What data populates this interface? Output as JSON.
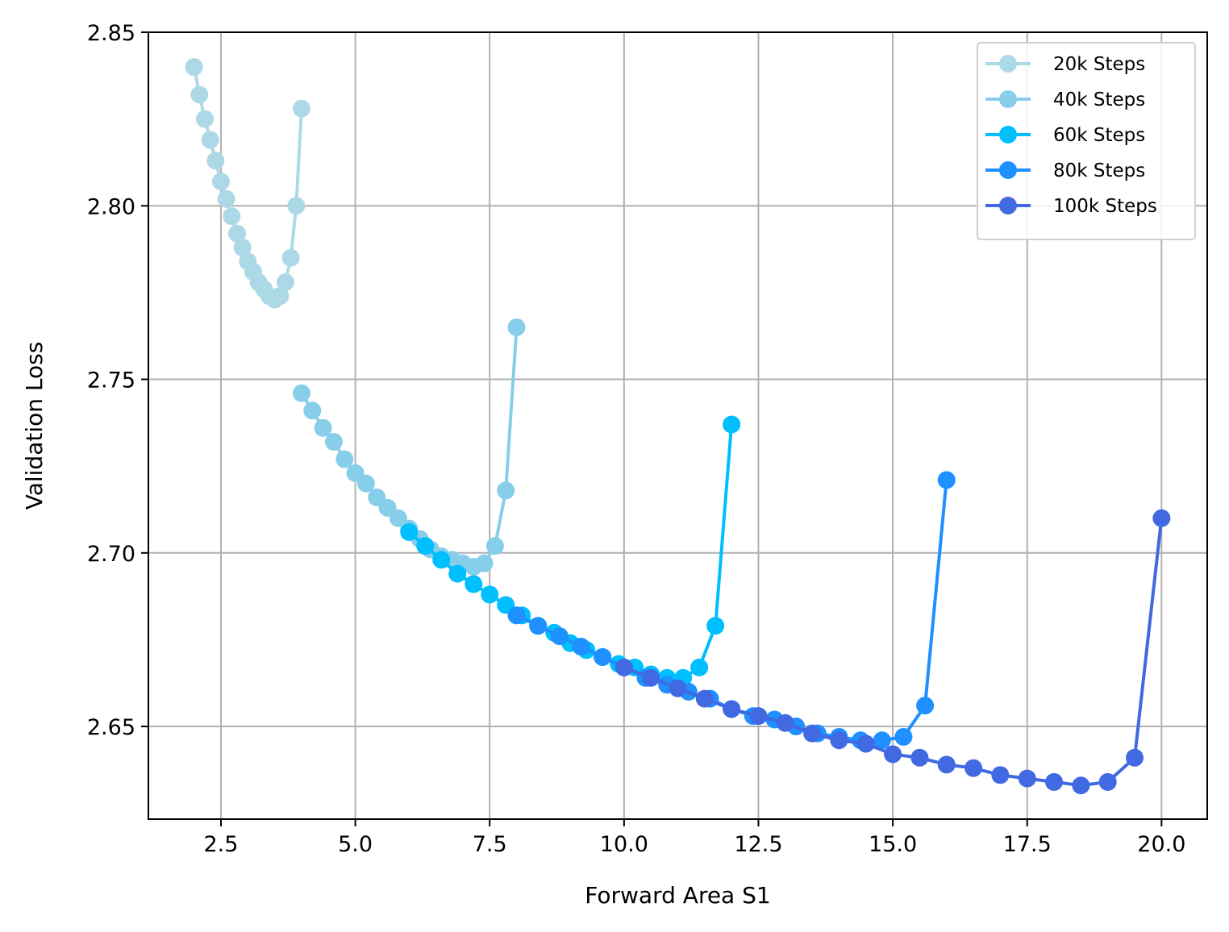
{
  "chart_data": {
    "type": "line",
    "xlabel": "Forward Area S1",
    "ylabel": "Validation Loss",
    "xlim": [
      1.15,
      20.85
    ],
    "ylim": [
      2.6233,
      2.85
    ],
    "xticks": [
      2.5,
      5.0,
      7.5,
      10.0,
      12.5,
      15.0,
      17.5,
      20.0
    ],
    "xtick_labels": [
      "2.5",
      "5.0",
      "7.5",
      "10.0",
      "12.5",
      "15.0",
      "17.5",
      "20.0"
    ],
    "yticks": [
      2.65,
      2.7,
      2.75,
      2.8,
      2.85
    ],
    "ytick_labels": [
      "2.65",
      "2.70",
      "2.75",
      "2.80",
      "2.85"
    ],
    "grid": true,
    "legend_position": "top-right",
    "series": [
      {
        "name": "20k Steps",
        "color": "#add8e6",
        "x": [
          2.0,
          2.1,
          2.2,
          2.3,
          2.4,
          2.5,
          2.6,
          2.7,
          2.8,
          2.9,
          3.0,
          3.1,
          3.2,
          3.3,
          3.4,
          3.5,
          3.6,
          3.7,
          3.8,
          3.9,
          4.0
        ],
        "y": [
          2.84,
          2.832,
          2.825,
          2.819,
          2.813,
          2.807,
          2.802,
          2.797,
          2.792,
          2.788,
          2.784,
          2.781,
          2.778,
          2.776,
          2.774,
          2.773,
          2.774,
          2.778,
          2.785,
          2.8,
          2.828
        ]
      },
      {
        "name": "40k Steps",
        "color": "#87ceeb",
        "x": [
          4.0,
          4.2,
          4.4,
          4.6,
          4.8,
          5.0,
          5.2,
          5.4,
          5.6,
          5.8,
          6.0,
          6.2,
          6.4,
          6.6,
          6.8,
          7.0,
          7.2,
          7.4,
          7.6,
          7.8,
          8.0
        ],
        "y": [
          2.746,
          2.741,
          2.736,
          2.732,
          2.727,
          2.723,
          2.72,
          2.716,
          2.713,
          2.71,
          2.707,
          2.704,
          2.701,
          2.699,
          2.698,
          2.697,
          2.696,
          2.697,
          2.702,
          2.718,
          2.765
        ]
      },
      {
        "name": "60k Steps",
        "color": "#00bfff",
        "x": [
          6.0,
          6.3,
          6.6,
          6.9,
          7.2,
          7.5,
          7.8,
          8.1,
          8.4,
          8.7,
          9.0,
          9.3,
          9.6,
          9.9,
          10.2,
          10.5,
          10.8,
          11.1,
          11.4,
          11.7,
          12.0
        ],
        "y": [
          2.706,
          2.702,
          2.698,
          2.694,
          2.691,
          2.688,
          2.685,
          2.682,
          2.679,
          2.677,
          2.674,
          2.672,
          2.67,
          2.668,
          2.667,
          2.665,
          2.664,
          2.664,
          2.667,
          2.679,
          2.737
        ]
      },
      {
        "name": "80k Steps",
        "color": "#1e90ff",
        "x": [
          8.0,
          8.4,
          8.8,
          9.2,
          9.6,
          10.0,
          10.4,
          10.8,
          11.2,
          11.6,
          12.0,
          12.4,
          12.8,
          13.2,
          13.6,
          14.0,
          14.4,
          14.8,
          15.2,
          15.6,
          16.0
        ],
        "y": [
          2.682,
          2.679,
          2.676,
          2.673,
          2.67,
          2.667,
          2.664,
          2.662,
          2.66,
          2.658,
          2.655,
          2.653,
          2.652,
          2.65,
          2.648,
          2.647,
          2.646,
          2.646,
          2.647,
          2.656,
          2.721
        ]
      },
      {
        "name": "100k Steps",
        "color": "#4169e1",
        "x": [
          10.0,
          10.5,
          11.0,
          11.5,
          12.0,
          12.5,
          13.0,
          13.5,
          14.0,
          14.5,
          15.0,
          15.5,
          16.0,
          16.5,
          17.0,
          17.5,
          18.0,
          18.5,
          19.0,
          19.5,
          20.0
        ],
        "y": [
          2.667,
          2.664,
          2.661,
          2.658,
          2.655,
          2.653,
          2.651,
          2.648,
          2.646,
          2.645,
          2.642,
          2.641,
          2.639,
          2.638,
          2.636,
          2.635,
          2.634,
          2.633,
          2.634,
          2.641,
          2.71
        ]
      }
    ]
  }
}
